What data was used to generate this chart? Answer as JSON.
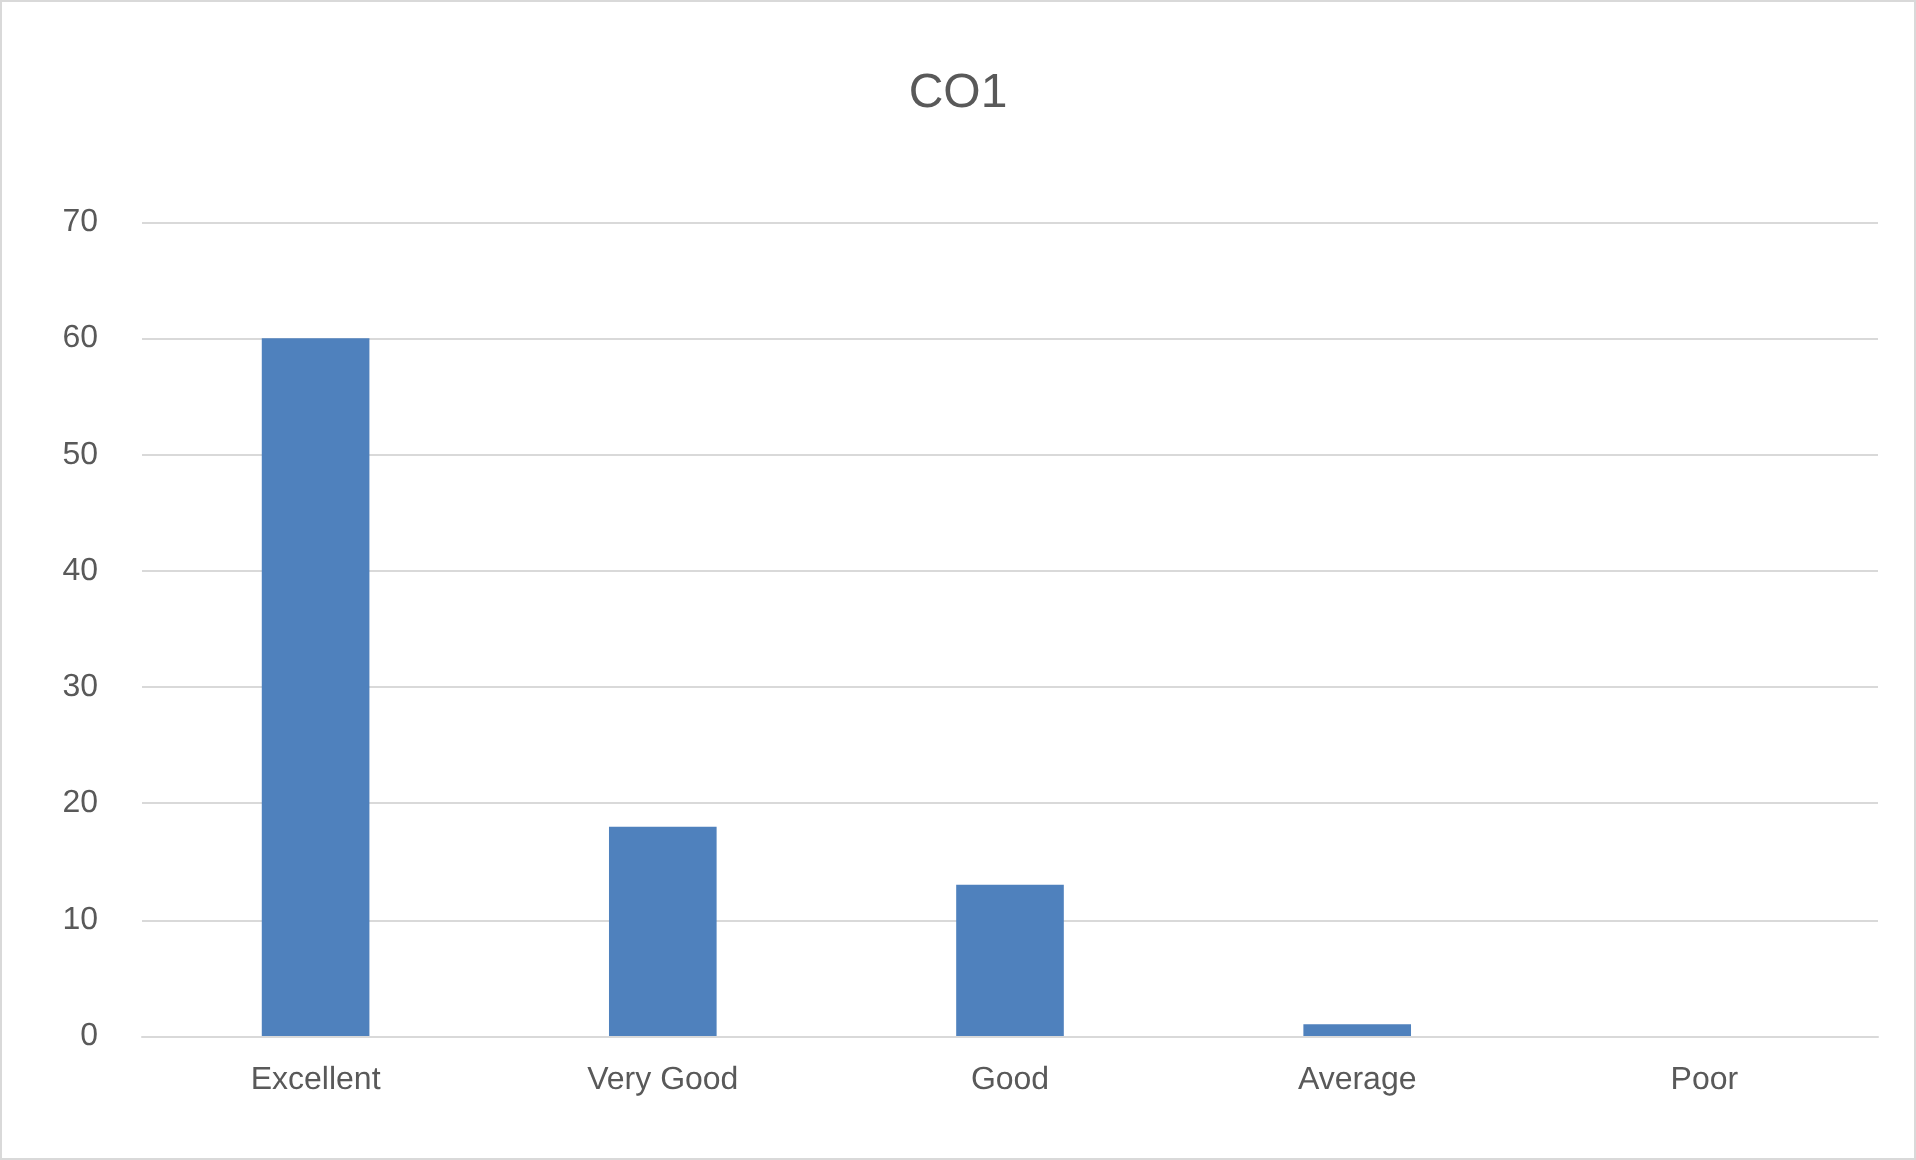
{
  "chart_data": {
    "type": "bar",
    "title": "CO1",
    "categories": [
      "Excellent",
      "Very Good",
      "Good",
      "Average",
      "Poor"
    ],
    "values": [
      60,
      18,
      13,
      1,
      0
    ],
    "color": "#4f81bd",
    "ylim": [
      0,
      70
    ],
    "yticks": [
      0,
      10,
      20,
      30,
      40,
      50,
      60,
      70
    ],
    "grid": "y"
  }
}
